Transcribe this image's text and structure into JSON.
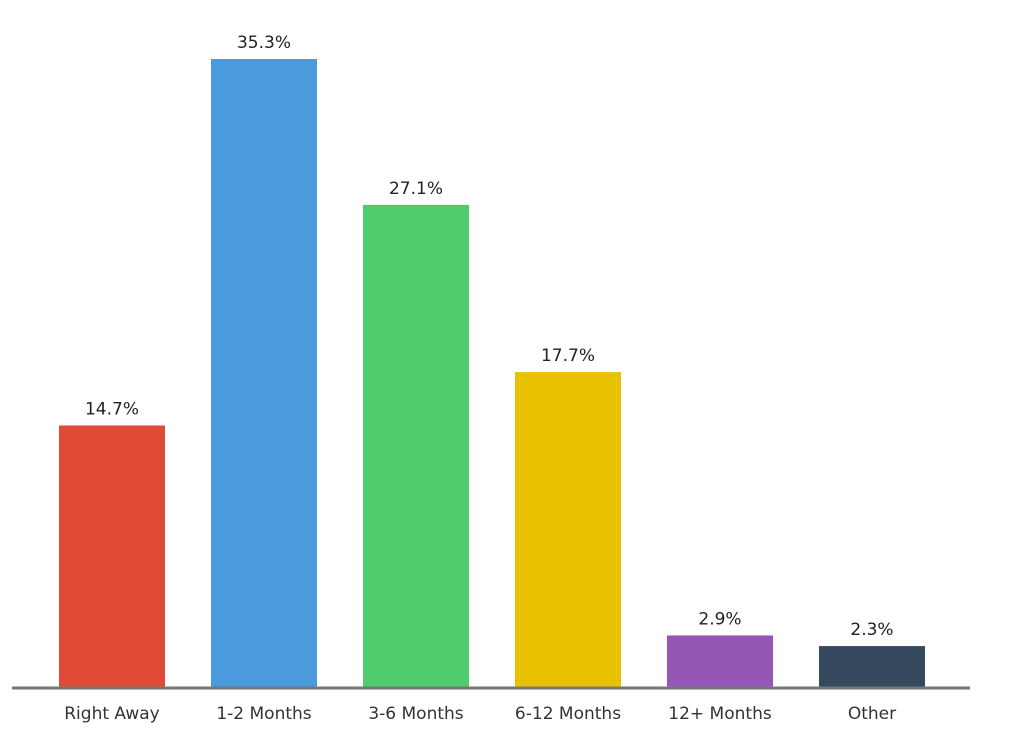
{
  "chart_data": {
    "type": "bar",
    "title": "",
    "xlabel": "",
    "ylabel": "",
    "categories": [
      "Right Away",
      "1-2 Months",
      "3-6 Months",
      "6-12 Months",
      "12+ Months",
      "Other"
    ],
    "values": [
      14.7,
      35.3,
      27.1,
      17.7,
      2.9,
      2.3
    ],
    "data_labels": [
      "14.7%",
      "35.3%",
      "27.1%",
      "17.7%",
      "2.9%",
      "2.3%"
    ],
    "colors": [
      "#e04b37",
      "#4a9ade",
      "#4fcc6e",
      "#e8c200",
      "#9557b6",
      "#34485e"
    ],
    "axis_color": "#777777",
    "ylim": [
      0,
      35.3
    ],
    "grid": false,
    "legend": "none"
  }
}
